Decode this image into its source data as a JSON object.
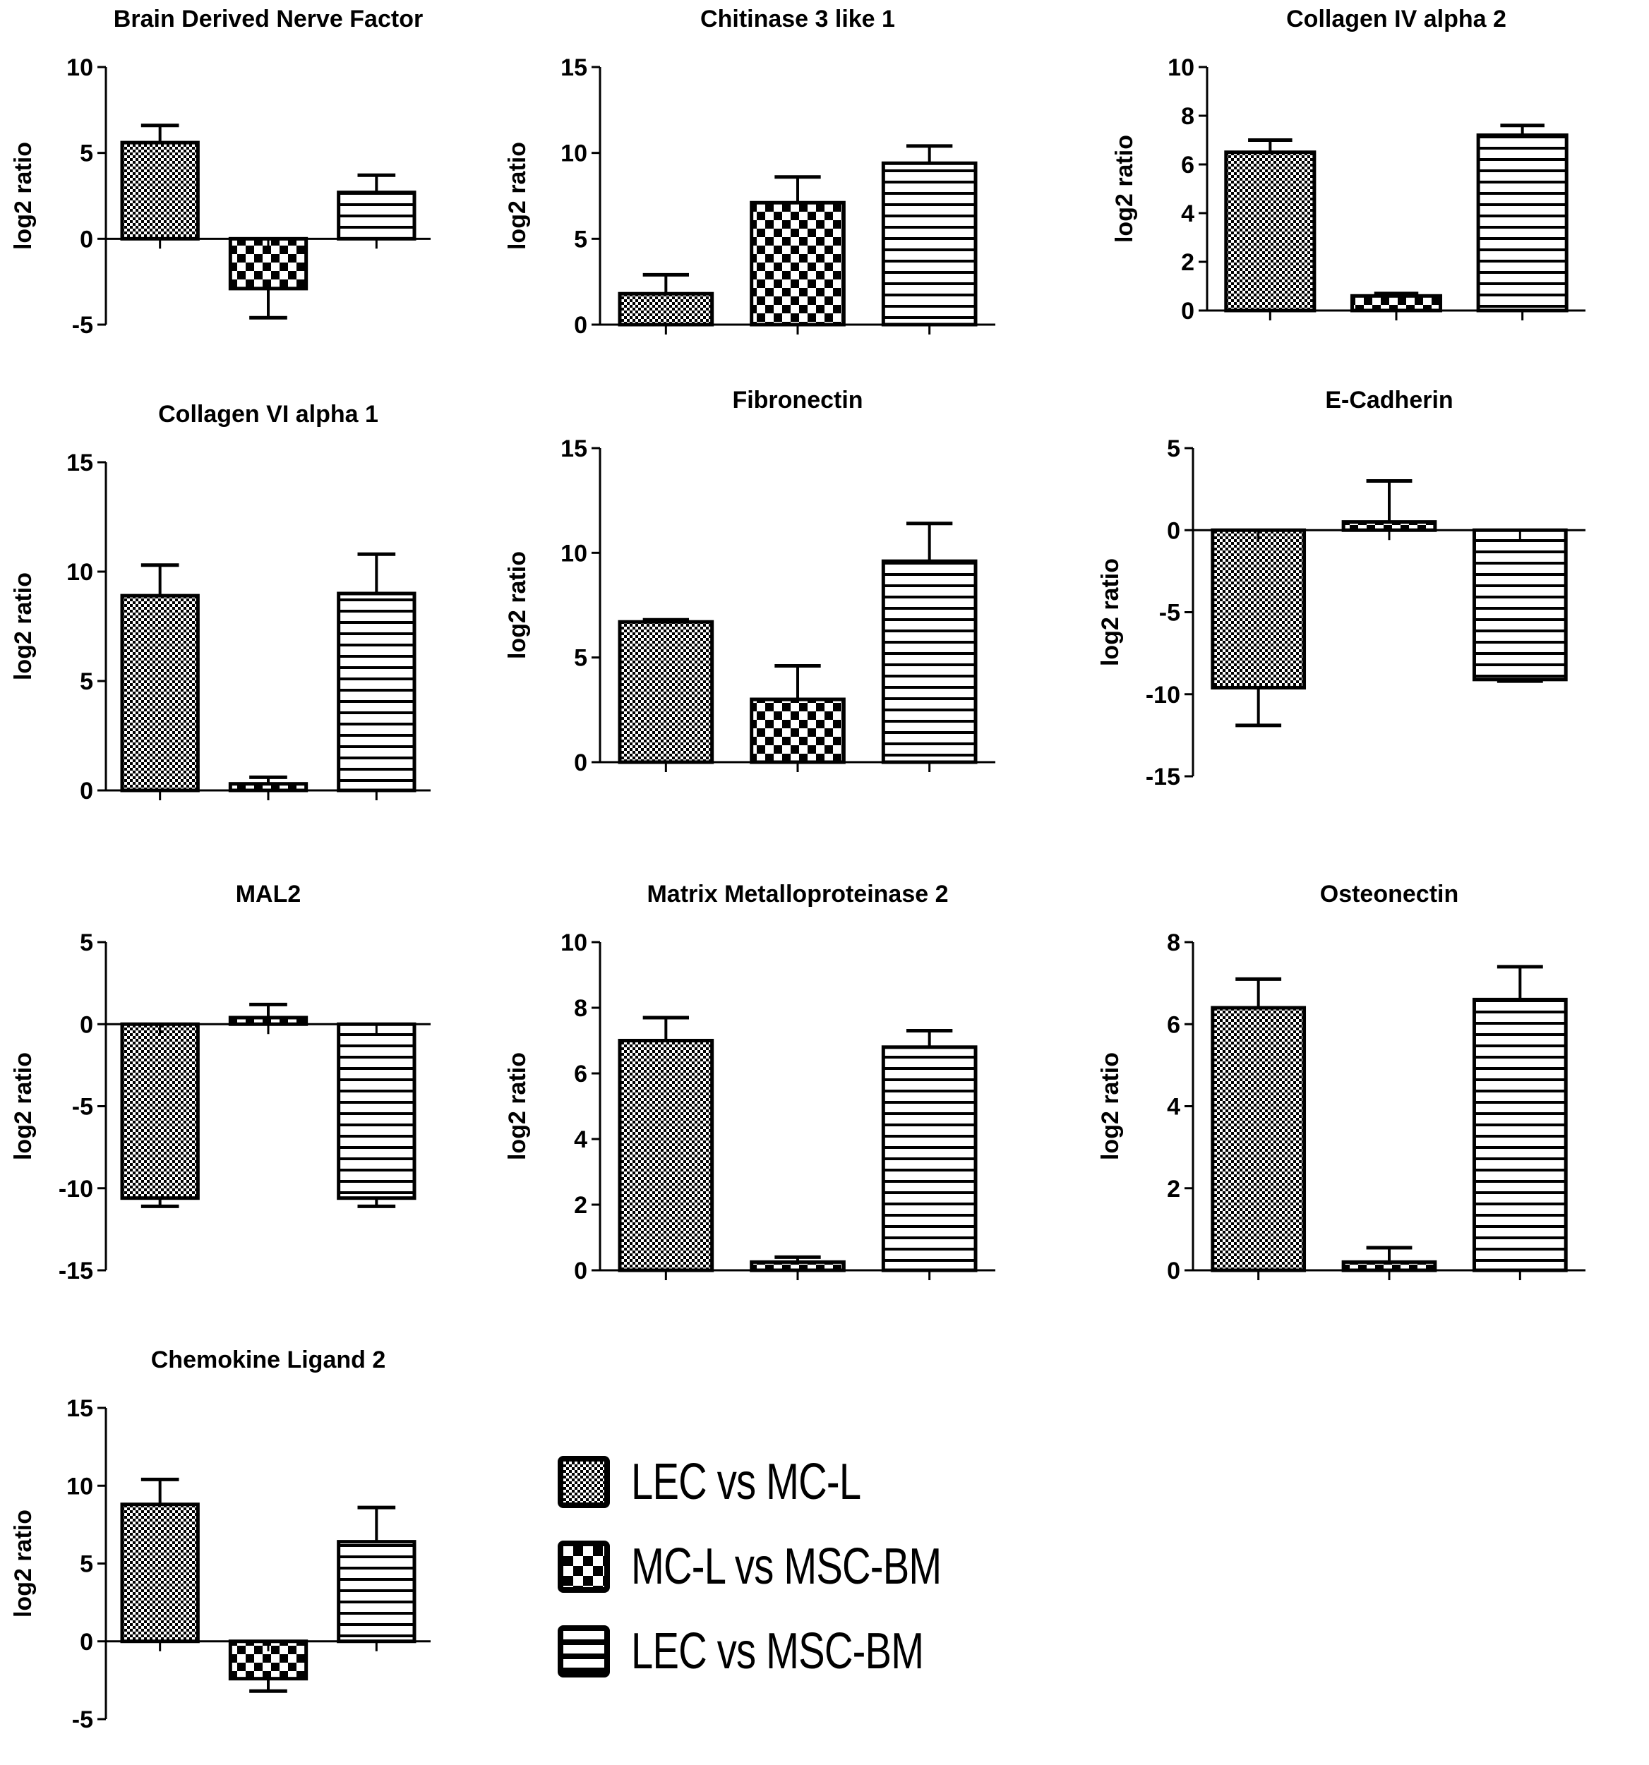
{
  "legend": {
    "series": [
      {
        "name": "LEC vs MC-L",
        "pattern": "fine-check"
      },
      {
        "name": "MC-L vs MSC-BM",
        "pattern": "coarse-check"
      },
      {
        "name": "LEC vs MSC-BM",
        "pattern": "horizontal-lines"
      }
    ]
  },
  "chart_data": [
    {
      "type": "bar",
      "title": "Brain Derived Nerve Factor",
      "ylabel": "log2 ratio",
      "xlabel": "",
      "categories": [
        "LEC vs MC-L",
        "MC-L vs MSC-BM",
        "LEC vs MSC-BM"
      ],
      "values": [
        5.6,
        -2.9,
        2.7
      ],
      "error_bar_ends": [
        6.6,
        -4.6,
        3.7
      ],
      "ylim": [
        -5,
        10
      ],
      "yticks": [
        -5,
        0,
        5,
        10
      ],
      "grid": false
    },
    {
      "type": "bar",
      "title": "Chitinase 3 like 1",
      "ylabel": "log2 ratio",
      "xlabel": "",
      "categories": [
        "LEC vs MC-L",
        "MC-L vs MSC-BM",
        "LEC vs MSC-BM"
      ],
      "values": [
        1.8,
        7.1,
        9.4
      ],
      "error_bar_ends": [
        2.9,
        8.6,
        10.4
      ],
      "ylim": [
        0,
        15
      ],
      "yticks": [
        0,
        5,
        10,
        15
      ],
      "grid": false
    },
    {
      "type": "bar",
      "title": "Collagen IV alpha 2",
      "ylabel": "log2 ratio",
      "xlabel": "",
      "categories": [
        "LEC vs MC-L",
        "MC-L vs MSC-BM",
        "LEC vs MSC-BM"
      ],
      "values": [
        6.5,
        0.6,
        7.2
      ],
      "error_bar_ends": [
        7.0,
        0.7,
        7.6
      ],
      "ylim": [
        0,
        10
      ],
      "yticks": [
        0,
        2,
        4,
        6,
        8,
        10
      ],
      "grid": false
    },
    {
      "type": "bar",
      "title": "Collagen VI alpha 1",
      "ylabel": "log2 ratio",
      "xlabel": "",
      "categories": [
        "LEC vs MC-L",
        "MC-L vs MSC-BM",
        "LEC vs MSC-BM"
      ],
      "values": [
        8.9,
        0.3,
        9.0
      ],
      "error_bar_ends": [
        10.3,
        0.6,
        10.8
      ],
      "ylim": [
        0,
        15
      ],
      "yticks": [
        0,
        5,
        10,
        15
      ],
      "grid": false
    },
    {
      "type": "bar",
      "title": "Fibronectin",
      "ylabel": "log2 ratio",
      "xlabel": "",
      "categories": [
        "LEC vs MC-L",
        "MC-L vs MSC-BM",
        "LEC vs MSC-BM"
      ],
      "values": [
        6.7,
        3.0,
        9.6
      ],
      "error_bar_ends": [
        6.8,
        4.6,
        11.4
      ],
      "ylim": [
        0,
        15
      ],
      "yticks": [
        0,
        5,
        10,
        15
      ],
      "grid": false
    },
    {
      "type": "bar",
      "title": "E-Cadherin",
      "ylabel": "log2 ratio",
      "xlabel": "",
      "categories": [
        "LEC vs MC-L",
        "MC-L vs MSC-BM",
        "LEC vs MSC-BM"
      ],
      "values": [
        -9.6,
        0.5,
        -9.1
      ],
      "error_bar_ends": [
        -11.9,
        3.0,
        -9.2
      ],
      "ylim": [
        -15,
        5
      ],
      "yticks": [
        -15,
        -10,
        -5,
        0,
        5
      ],
      "grid": false
    },
    {
      "type": "bar",
      "title": "MAL2",
      "ylabel": "log2 ratio",
      "xlabel": "",
      "categories": [
        "LEC vs MC-L",
        "MC-L vs MSC-BM",
        "LEC vs MSC-BM"
      ],
      "values": [
        -10.6,
        0.4,
        -10.6
      ],
      "error_bar_ends": [
        -11.1,
        1.2,
        -11.1
      ],
      "ylim": [
        -15,
        5
      ],
      "yticks": [
        -15,
        -10,
        -5,
        0,
        5
      ],
      "grid": false
    },
    {
      "type": "bar",
      "title": "Matrix Metalloproteinase 2",
      "ylabel": "log2 ratio",
      "xlabel": "",
      "categories": [
        "LEC vs MC-L",
        "MC-L vs MSC-BM",
        "LEC vs MSC-BM"
      ],
      "values": [
        7.0,
        0.25,
        6.8
      ],
      "error_bar_ends": [
        7.7,
        0.4,
        7.3
      ],
      "ylim": [
        0,
        10
      ],
      "yticks": [
        0,
        2,
        4,
        6,
        8,
        10
      ],
      "grid": false
    },
    {
      "type": "bar",
      "title": "Osteonectin",
      "ylabel": "log2 ratio",
      "xlabel": "",
      "categories": [
        "LEC vs MC-L",
        "MC-L vs MSC-BM",
        "LEC vs MSC-BM"
      ],
      "values": [
        6.4,
        0.2,
        6.6
      ],
      "error_bar_ends": [
        7.1,
        0.55,
        7.4
      ],
      "ylim": [
        0,
        8
      ],
      "yticks": [
        0,
        2,
        4,
        6,
        8
      ],
      "grid": false
    },
    {
      "type": "bar",
      "title": "Chemokine Ligand 2",
      "ylabel": "log2 ratio",
      "xlabel": "",
      "categories": [
        "LEC vs MC-L",
        "MC-L vs MSC-BM",
        "LEC vs MSC-BM"
      ],
      "values": [
        8.8,
        -2.4,
        6.4
      ],
      "error_bar_ends": [
        10.4,
        -3.2,
        8.6
      ],
      "ylim": [
        -5,
        15
      ],
      "yticks": [
        -5,
        0,
        5,
        10,
        15
      ],
      "grid": false
    }
  ]
}
